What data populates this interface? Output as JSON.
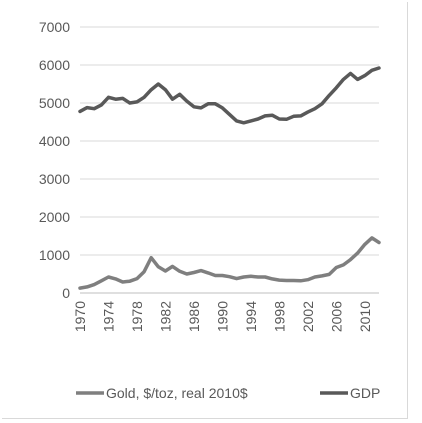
{
  "chart_data": {
    "type": "line",
    "title": "",
    "xlabel": "",
    "ylabel": "",
    "xlim": [
      1970,
      2012
    ],
    "ylim": [
      0,
      7000
    ],
    "y_ticks": [
      0,
      1000,
      2000,
      3000,
      4000,
      5000,
      6000,
      7000
    ],
    "y_tick_labels": [
      "0",
      "1000",
      "2000",
      "3000",
      "4000",
      "5000",
      "6000",
      "7000"
    ],
    "x_ticks": [
      1970,
      1974,
      1978,
      1982,
      1986,
      1990,
      1994,
      1998,
      2002,
      2006,
      2010
    ],
    "x_tick_labels": [
      "1970",
      "1974",
      "1978",
      "1982",
      "1986",
      "1990",
      "1994",
      "1998",
      "2002",
      "2006",
      "2010"
    ],
    "grid": "horizontal",
    "legend_position": "bottom",
    "x": [
      1970,
      1971,
      1972,
      1973,
      1974,
      1975,
      1976,
      1977,
      1978,
      1979,
      1980,
      1981,
      1982,
      1983,
      1984,
      1985,
      1986,
      1987,
      1988,
      1989,
      1990,
      1991,
      1992,
      1993,
      1994,
      1995,
      1996,
      1997,
      1998,
      1999,
      2000,
      2001,
      2002,
      2003,
      2004,
      2005,
      2006,
      2007,
      2008,
      2009,
      2010,
      2011,
      2012
    ],
    "series": [
      {
        "name": "Gold, $/toz, real 2010$",
        "color": "#7f7f7f",
        "values": [
          130,
          160,
          220,
          320,
          420,
          370,
          290,
          310,
          380,
          560,
          930,
          690,
          580,
          700,
          570,
          500,
          540,
          590,
          530,
          460,
          460,
          430,
          380,
          420,
          440,
          420,
          420,
          370,
          340,
          330,
          330,
          320,
          350,
          420,
          450,
          490,
          670,
          740,
          880,
          1050,
          1280,
          1450,
          1330
        ]
      },
      {
        "name": "GDP",
        "color": "#595959",
        "values": [
          4780,
          4880,
          4850,
          4950,
          5150,
          5100,
          5120,
          5000,
          5030,
          5150,
          5350,
          5500,
          5350,
          5100,
          5230,
          5050,
          4900,
          4870,
          4980,
          4980,
          4870,
          4700,
          4530,
          4480,
          4530,
          4580,
          4660,
          4680,
          4580,
          4570,
          4650,
          4660,
          4760,
          4850,
          4980,
          5200,
          5400,
          5620,
          5780,
          5620,
          5720,
          5860,
          5920
        ]
      }
    ]
  }
}
